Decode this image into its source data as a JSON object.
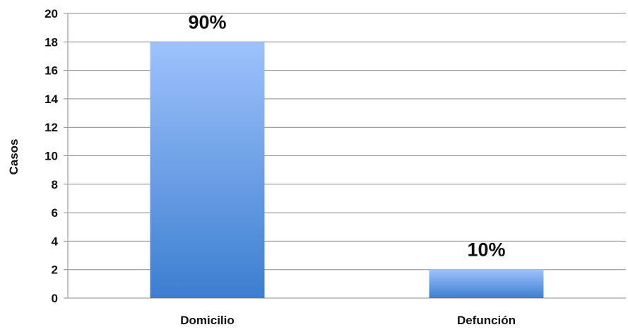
{
  "chart_data": {
    "type": "bar",
    "categories": [
      "Domicilio",
      "Defunción"
    ],
    "values": [
      18,
      2
    ],
    "data_labels": [
      "90%",
      "10%"
    ],
    "ylabel": "Casos",
    "xlabel": "",
    "ylim": [
      0,
      20
    ],
    "yticks": [
      0,
      2,
      4,
      6,
      8,
      10,
      12,
      14,
      16,
      18,
      20
    ],
    "grid": true,
    "legend": "none",
    "colors": {
      "bar_top": "#9EC2FC",
      "bar_bottom": "#3C7ED0",
      "grid": "#8C8C8C"
    }
  }
}
